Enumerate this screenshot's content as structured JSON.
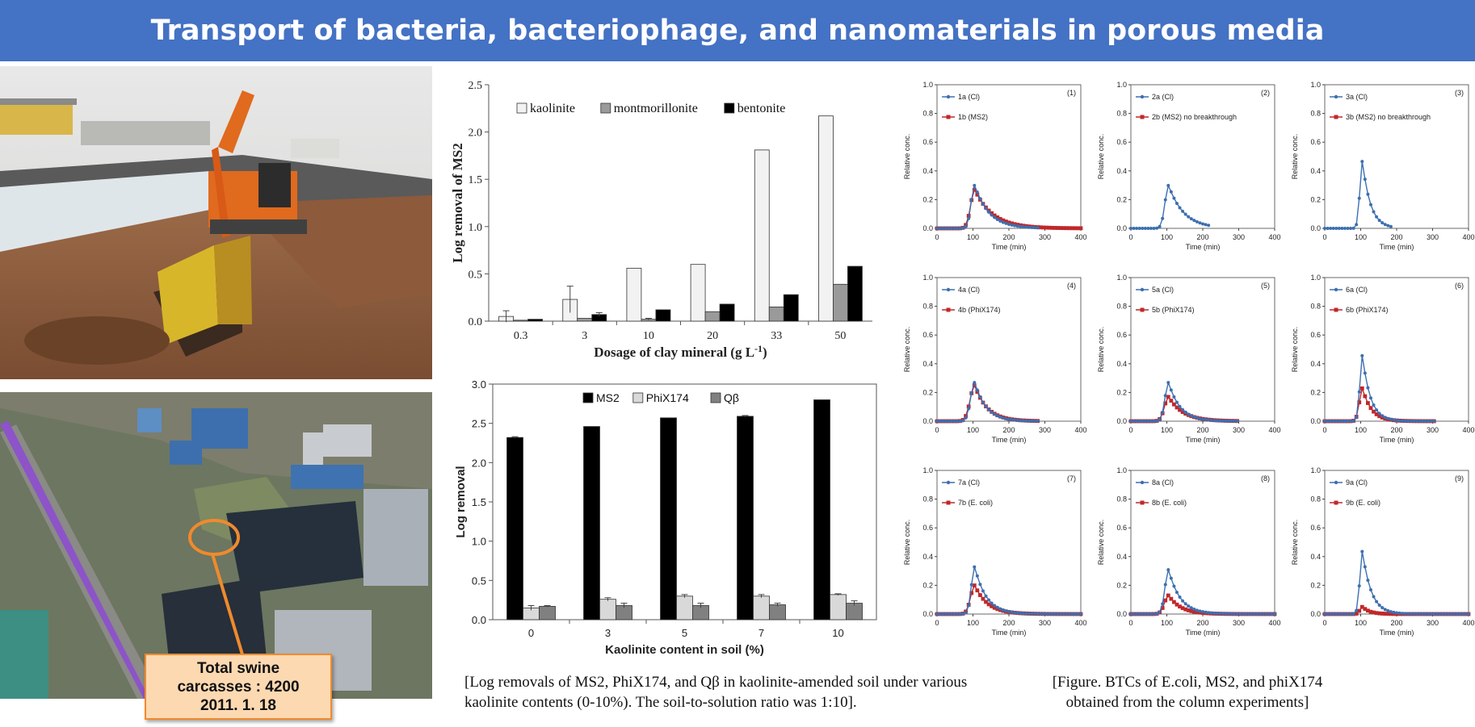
{
  "header": {
    "title": "Transport of bacteria, bacteriophage, and nanomaterials in porous media"
  },
  "photos": {
    "callout_line1": "Total swine",
    "callout_line2": "carcasses : 4200",
    "callout_line3": "2011. 1. 18"
  },
  "captions": {
    "phage": "[Log removals of MS2, PhiX174, and Qβ in kaolinite-amended soil under various kaolinite contents (0-10%). The soil-to-solution ratio was 1:10].",
    "btc_line1": "[Figure. BTCs of E.coli, MS2, and phiX174",
    "btc_line2": "obtained from the column experiments]"
  },
  "colors": {
    "banner": "#4472c4",
    "callout_border": "#f08a2d",
    "callout_fill": "#fdd9b2",
    "tracer": "#3d6fb0",
    "target": "#c0282a"
  },
  "chart_data": [
    {
      "id": "clay",
      "type": "bar",
      "xlabel": "Dosage of clay mineral (g L",
      "xlabel_sup": "-1",
      "xlabel_tail": ")",
      "ylabel": "Log removal of MS2",
      "ylim": [
        0,
        2.5
      ],
      "yticks": [
        "0.0",
        "0.5",
        "1.0",
        "1.5",
        "2.0",
        "2.5"
      ],
      "categories": [
        "0.3",
        "3",
        "10",
        "20",
        "33",
        "50"
      ],
      "series": [
        {
          "name": "kaolinite",
          "color": "#f2f2f2",
          "values": [
            0.05,
            0.23,
            0.56,
            0.6,
            1.81,
            2.17
          ],
          "err": [
            0.06,
            0.14,
            0,
            0,
            0,
            0
          ]
        },
        {
          "name": "montmorillonite",
          "color": "#9a9a9a",
          "values": [
            0.01,
            0.03,
            0.02,
            0.1,
            0.15,
            0.39
          ],
          "err": [
            0,
            0,
            0.01,
            0,
            0,
            0
          ]
        },
        {
          "name": "bentonite",
          "color": "#000000",
          "values": [
            0.02,
            0.07,
            0.12,
            0.18,
            0.28,
            0.58
          ],
          "err": [
            0,
            0.02,
            0,
            0,
            0,
            0
          ]
        }
      ],
      "legend": "top-left",
      "grid": false
    },
    {
      "id": "kaolinite",
      "type": "bar",
      "xlabel": "Kaolinite content in soil (%)",
      "ylabel": "Log removal",
      "ylim": [
        0,
        3.0
      ],
      "yticks": [
        "0.0",
        "0.5",
        "1.0",
        "1.5",
        "2.0",
        "2.5",
        "3.0"
      ],
      "categories": [
        "0",
        "3",
        "5",
        "7",
        "10"
      ],
      "series": [
        {
          "name": "MS2",
          "color": "#000000",
          "values": [
            2.32,
            2.46,
            2.57,
            2.59,
            2.8
          ],
          "err": [
            0.01,
            0,
            0,
            0.01,
            0
          ]
        },
        {
          "name": "PhiX174",
          "color": "#d9d9d9",
          "values": [
            0.15,
            0.26,
            0.3,
            0.3,
            0.32
          ],
          "err": [
            0.03,
            0.02,
            0.02,
            0.02,
            0.01
          ]
        },
        {
          "name": "Qβ",
          "color": "#808080",
          "values": [
            0.17,
            0.18,
            0.18,
            0.19,
            0.21
          ],
          "err": [
            0.01,
            0.03,
            0.03,
            0.02,
            0.03
          ]
        }
      ],
      "legend": "top-center",
      "grid": false
    },
    {
      "id": "btc",
      "type": "line",
      "xlabel": "Time (min)",
      "ylabel": "Relative conc.",
      "xlim": [
        0,
        400
      ],
      "ylim": [
        0,
        1.0
      ],
      "xticks": [
        "0",
        "100",
        "200",
        "300",
        "400"
      ],
      "yticks": [
        "0.0",
        "0.2",
        "0.4",
        "0.6",
        "0.8",
        "1.0"
      ],
      "panels": [
        {
          "num": "(1)",
          "leg1": "1a (Cl)",
          "leg2": "1b (MS2)",
          "a_peak": 0.3,
          "a_width": 14,
          "a_tail": 40,
          "a_end": 280,
          "b_peak": 0.27,
          "b_width": 16,
          "b_tail": 50,
          "b_end": 400
        },
        {
          "num": "(2)",
          "leg1": "2a (Cl)",
          "leg2": "2b (MS2) no breakthrough",
          "a_peak": 0.3,
          "a_width": 14,
          "a_tail": 42,
          "a_end": 220,
          "b_peak": 0,
          "b_width": 0,
          "b_tail": 0,
          "b_end": 0
        },
        {
          "num": "(3)",
          "leg1": "3a (Cl)",
          "leg2": "3b (MS2) no breakthrough",
          "a_peak": 0.47,
          "a_width": 10,
          "a_tail": 22,
          "a_end": 190,
          "b_peak": 0,
          "b_width": 0,
          "b_tail": 0,
          "b_end": 0
        },
        {
          "num": "(4)",
          "leg1": "4a (Cl)",
          "leg2": "4b (PhiX174)",
          "a_peak": 0.27,
          "a_width": 16,
          "a_tail": 32,
          "a_end": 285,
          "b_peak": 0.25,
          "b_width": 18,
          "b_tail": 35,
          "b_end": 285
        },
        {
          "num": "(5)",
          "leg1": "5a (Cl)",
          "leg2": "5b (PhiX174)",
          "a_peak": 0.27,
          "a_width": 14,
          "a_tail": 32,
          "a_end": 300,
          "b_peak": 0.17,
          "b_width": 16,
          "b_tail": 40,
          "b_end": 300
        },
        {
          "num": "(6)",
          "leg1": "6a (Cl)",
          "leg2": "6b (PhiX174)",
          "a_peak": 0.46,
          "a_width": 10,
          "a_tail": 22,
          "a_end": 310,
          "b_peak": 0.23,
          "b_width": 12,
          "b_tail": 25,
          "b_end": 310
        },
        {
          "num": "(7)",
          "leg1": "7a (Cl)",
          "leg2": "7b (E. coli)",
          "a_peak": 0.33,
          "a_width": 13,
          "a_tail": 32,
          "a_end": 400,
          "b_peak": 0.2,
          "b_width": 16,
          "b_tail": 36,
          "b_end": 400
        },
        {
          "num": "(8)",
          "leg1": "8a (Cl)",
          "leg2": "8b (E. coli)",
          "a_peak": 0.31,
          "a_width": 14,
          "a_tail": 32,
          "a_end": 400,
          "b_peak": 0.13,
          "b_width": 16,
          "b_tail": 34,
          "b_end": 400
        },
        {
          "num": "(9)",
          "leg1": "9a (Cl)",
          "leg2": "9b (E. coli)",
          "a_peak": 0.44,
          "a_width": 10,
          "a_tail": 24,
          "a_end": 400,
          "b_peak": 0.05,
          "b_width": 10,
          "b_tail": 20,
          "b_end": 400
        }
      ],
      "peak_time": 105
    }
  ]
}
